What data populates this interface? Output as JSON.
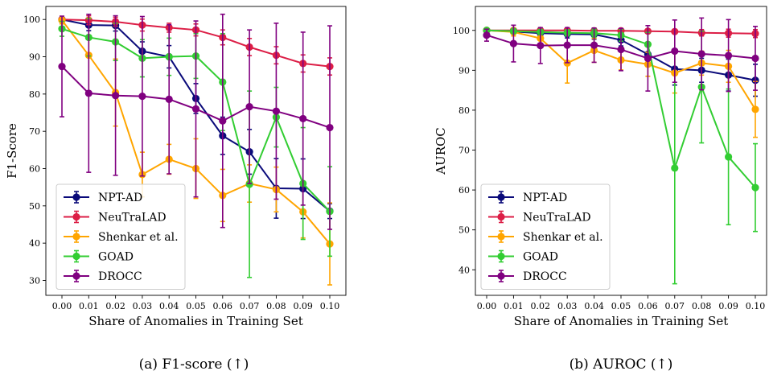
{
  "chart_data": [
    {
      "type": "line",
      "caption": "(a) F1-score (↑)",
      "xlabel": "Share of Anomalies in Training Set",
      "ylabel": "F1-Score",
      "x": [
        0.0,
        0.01,
        0.02,
        0.03,
        0.04,
        0.05,
        0.06,
        0.07,
        0.08,
        0.09,
        0.1
      ],
      "x_tick_labels": [
        "0.00",
        "0.01",
        "0.02",
        "0.03",
        "0.04",
        "0.05",
        "0.06",
        "0.07",
        "0.08",
        "0.09",
        "0.10"
      ],
      "yticks": [
        30,
        40,
        50,
        60,
        70,
        80,
        90,
        100
      ],
      "ylim": [
        26,
        103.5
      ],
      "legend_position": "lower-left",
      "series": [
        {
          "name": "NPT-AD",
          "color": "#0a0a7a",
          "values": [
            100,
            98.5,
            98.4,
            91.5,
            90,
            78.8,
            68.8,
            64.5,
            54.7,
            54.6,
            48.6
          ],
          "err": [
            0.3,
            1.5,
            1.5,
            2.5,
            3,
            4,
            5,
            6,
            8,
            8,
            2
          ]
        },
        {
          "name": "NeuTraLAD",
          "color": "#dc1e46",
          "values": [
            100,
            99.8,
            99.4,
            98.5,
            97.8,
            97.2,
            95.2,
            92.6,
            90.4,
            88.2,
            87.4
          ],
          "err": [
            0.4,
            1.2,
            1.2,
            1.6,
            1.2,
            1.6,
            2,
            2.3,
            2.3,
            2.3,
            2.3
          ]
        },
        {
          "name": "Shenkar et al.",
          "color": "#ffa500",
          "values": [
            99.8,
            90.4,
            80.4,
            58.4,
            62.5,
            60,
            52.8,
            56,
            54.4,
            48.4,
            39.8
          ],
          "err": [
            1,
            10,
            9,
            6,
            4,
            8,
            7,
            5,
            6,
            7,
            11
          ]
        },
        {
          "name": "GOAD",
          "color": "#32cd32",
          "values": [
            97.5,
            95.2,
            94,
            89.6,
            90,
            90.2,
            83.2,
            55.8,
            73.8,
            56,
            48.5
          ],
          "err": [
            2,
            5,
            5,
            5,
            5,
            6,
            13,
            25,
            8,
            15,
            12
          ]
        },
        {
          "name": "DROCC",
          "color": "#800080",
          "values": [
            87.4,
            80.2,
            79.6,
            79.4,
            78.6,
            76,
            72.8,
            76.6,
            75.4,
            73.4,
            71
          ],
          "err": [
            13.5,
            21.2,
            21.4,
            21.4,
            20,
            23.6,
            28.6,
            20.6,
            23.6,
            23.2,
            27.3
          ]
        }
      ]
    },
    {
      "type": "line",
      "caption": "(b) AUROC (↑)",
      "xlabel": "Share of Anomalies in Training Set",
      "ylabel": "AUROC",
      "x": [
        0.0,
        0.01,
        0.02,
        0.03,
        0.04,
        0.05,
        0.06,
        0.07,
        0.08,
        0.09,
        0.1
      ],
      "x_tick_labels": [
        "0.00",
        "0.01",
        "0.02",
        "0.03",
        "0.04",
        "0.05",
        "0.06",
        "0.07",
        "0.08",
        "0.09",
        "0.10"
      ],
      "yticks": [
        40,
        50,
        60,
        70,
        80,
        90,
        100
      ],
      "ylim": [
        33.6,
        106
      ],
      "legend_position": "lower-left",
      "series": [
        {
          "name": "NPT-AD",
          "color": "#0a0a7a",
          "values": [
            100,
            99.7,
            99.3,
            99.1,
            99,
            97.6,
            94,
            90.3,
            90,
            88.8,
            87.5
          ],
          "err": [
            0.3,
            0.5,
            0.8,
            1,
            1.2,
            1.5,
            3,
            4,
            3,
            4,
            4
          ]
        },
        {
          "name": "NeuTraLAD",
          "color": "#dc1e46",
          "values": [
            100,
            100,
            100,
            100,
            99.9,
            99.9,
            99.8,
            99.7,
            99.4,
            99.3,
            99.2
          ],
          "err": [
            0.3,
            0.5,
            0.5,
            0.5,
            0.5,
            0.5,
            0.5,
            0.5,
            0.8,
            1,
            1
          ]
        },
        {
          "name": "Shenkar et al.",
          "color": "#ffa500",
          "values": [
            100,
            99.6,
            98,
            91.8,
            95,
            92.6,
            91.5,
            89.3,
            91.8,
            91,
            80.2
          ],
          "err": [
            0.5,
            1,
            2,
            5,
            3,
            2.5,
            3,
            5,
            3,
            4,
            7
          ]
        },
        {
          "name": "GOAD",
          "color": "#32cd32",
          "values": [
            100,
            99.8,
            99.6,
            99.4,
            99.3,
            98.8,
            96.5,
            65.5,
            85.8,
            68.3,
            60.6
          ],
          "err": [
            0.3,
            0.5,
            0.6,
            0.8,
            1,
            1.5,
            3,
            29,
            14,
            17,
            11
          ]
        },
        {
          "name": "DROCC",
          "color": "#800080",
          "values": [
            98.8,
            96.7,
            96.2,
            96.3,
            96.3,
            95.2,
            93,
            94.8,
            94.1,
            93.7,
            93
          ],
          "err": [
            1.5,
            4.6,
            4.5,
            4.4,
            4.3,
            5.3,
            8.2,
            7.8,
            9,
            9,
            8
          ]
        }
      ]
    }
  ]
}
